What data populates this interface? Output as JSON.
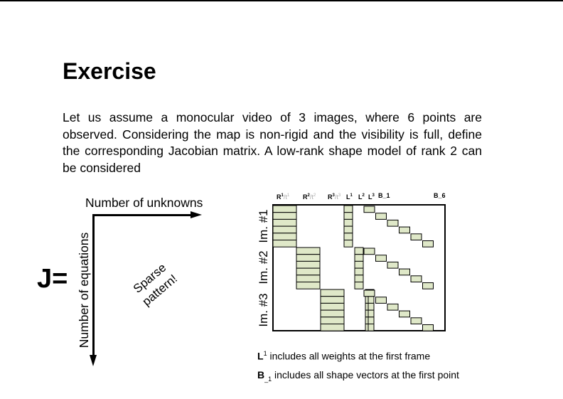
{
  "title": "Exercise",
  "body": "Let us assume a monocular video of 3 images, where 6 points are observed. Considering the map is non-rigid and the visibility is full, define the corresponding Jacobian matrix. A low-rank shape model of rank 2 can be considered",
  "jacobian": {
    "symbol": "J=",
    "x_axis_label": "Number of unknowns",
    "y_axis_label": "Number of equations",
    "sparse_line1": "Sparse",
    "sparse_line2": "pattern!"
  },
  "matrix": {
    "fill_color": "#dfe8c8",
    "border_color": "#000000",
    "row_labels": [
      "Im. #1",
      "Im. #2",
      "Im. #3"
    ],
    "col_labels": {
      "r1": "R",
      "r1_sup": "1",
      "t1": "/t",
      "t1_sup": "1",
      "r2": "R",
      "r2_sup": "2",
      "t2": "/t",
      "t2_sup": "2",
      "r3": "R",
      "r3_sup": "3",
      "t3": "/t",
      "t3_sup": "3",
      "l1": "L",
      "l1_sup": "1",
      "l2": "L",
      "l2_sup": "2",
      "l3": "L",
      "l3_sup": "3",
      "b1": "B_1",
      "b6": "B_6"
    }
  },
  "notes": {
    "l1_symbol": "L",
    "l1_sup": "1",
    "l1_text": " includes all weights at the first frame",
    "b1_symbol": "B",
    "b1_sub": "_1",
    "b1_text": " includes all shape vectors at the first point"
  }
}
